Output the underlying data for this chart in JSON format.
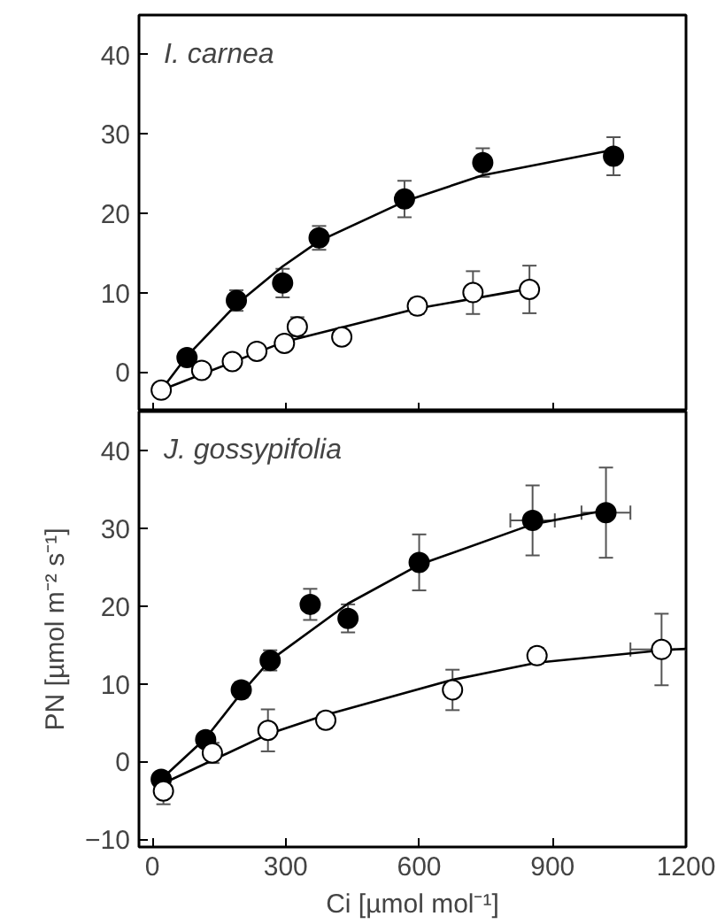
{
  "chart_data": [
    {
      "type": "scatter",
      "title": "I. carnea",
      "xlim": [
        -30,
        1200
      ],
      "xticks": [
        0,
        300,
        600,
        900,
        1200
      ],
      "ylim": [
        -5,
        45
      ],
      "yticks": [
        0,
        10,
        20,
        30,
        40
      ],
      "tick_labels": "y",
      "grid": false,
      "marker": "circle",
      "series": [
        {
          "type": "line",
          "color": "#000000",
          "marker": "none",
          "x": [
            20,
            78,
            189,
            293,
            375,
            567,
            743,
            1037
          ],
          "values": [
            -2.3,
            2,
            8.5,
            13.3,
            16.5,
            21.5,
            24.8,
            28
          ]
        },
        {
          "type": "line",
          "color": "#000000",
          "marker": "none",
          "x": [
            20,
            297,
            596,
            848
          ],
          "values": [
            -2.3,
            3.8,
            8,
            10.5
          ]
        },
        {
          "color": "#000000",
          "x": [
            78,
            189,
            293,
            375,
            567,
            743,
            1037
          ],
          "values": [
            1.8,
            9,
            11.2,
            16.9,
            21.8,
            26.4,
            27.2
          ],
          "errors": [
            null,
            1.3,
            1.8,
            1.5,
            2.3,
            1.8,
            2.4
          ]
        },
        {
          "color": "#ffffff",
          "x": [
            20,
            111,
            180,
            235,
            297,
            326,
            426,
            596,
            721,
            848
          ],
          "values": [
            -2.3,
            0.2,
            1.3,
            2.6,
            3.6,
            5.7,
            4.4,
            8.3,
            10,
            10.4
          ],
          "errors": [
            null,
            null,
            null,
            null,
            null,
            1.2,
            null,
            1,
            2.7,
            3
          ]
        }
      ]
    },
    {
      "type": "scatter",
      "title": "J. gossypifolia",
      "xlabel": "Ci [µmol mol⁻¹]",
      "ylabel": "PN [µmol m⁻² s⁻¹]",
      "xlim": [
        -30,
        1200
      ],
      "xticks": [
        0,
        300,
        600,
        900,
        1200
      ],
      "ylim": [
        -11,
        45
      ],
      "yticks": [
        -10,
        0,
        10,
        20,
        30,
        40
      ],
      "grid": false,
      "marker": "circle",
      "series": [
        {
          "type": "line",
          "color": "#000000",
          "marker": "none",
          "x": [
            20,
            120,
            200,
            265,
            440,
            600,
            855,
            1020
          ],
          "values": [
            -2.3,
            3,
            8.8,
            13,
            20.3,
            25.3,
            30.5,
            32.3
          ]
        },
        {
          "type": "line",
          "color": "#000000",
          "marker": "none",
          "x": [
            25,
            260,
            390,
            675,
            865,
            1145,
            1200
          ],
          "values": [
            -2.8,
            3.5,
            6,
            10.5,
            12.7,
            14.3,
            14.5
          ]
        },
        {
          "color": "#000000",
          "x": [
            20,
            120,
            200,
            265,
            355,
            440,
            600,
            855,
            1020
          ],
          "values": [
            -2.3,
            2.8,
            9.2,
            13,
            20.2,
            18.4,
            25.6,
            31,
            32
          ],
          "errors": [
            null,
            null,
            1,
            1.3,
            2,
            1.8,
            3.6,
            4.5,
            5.8
          ],
          "xerrors": [
            null,
            null,
            null,
            null,
            null,
            null,
            null,
            50,
            55
          ]
        },
        {
          "color": "#ffffff",
          "x": [
            25,
            135,
            260,
            390,
            675,
            865,
            1145
          ],
          "values": [
            -3.8,
            1.1,
            4,
            5.3,
            9.2,
            13.6,
            14.4
          ],
          "errors": [
            1.7,
            1.3,
            2.7,
            1,
            2.6,
            1,
            4.6
          ],
          "xerrors": [
            null,
            null,
            null,
            null,
            null,
            null,
            70
          ]
        }
      ]
    }
  ]
}
